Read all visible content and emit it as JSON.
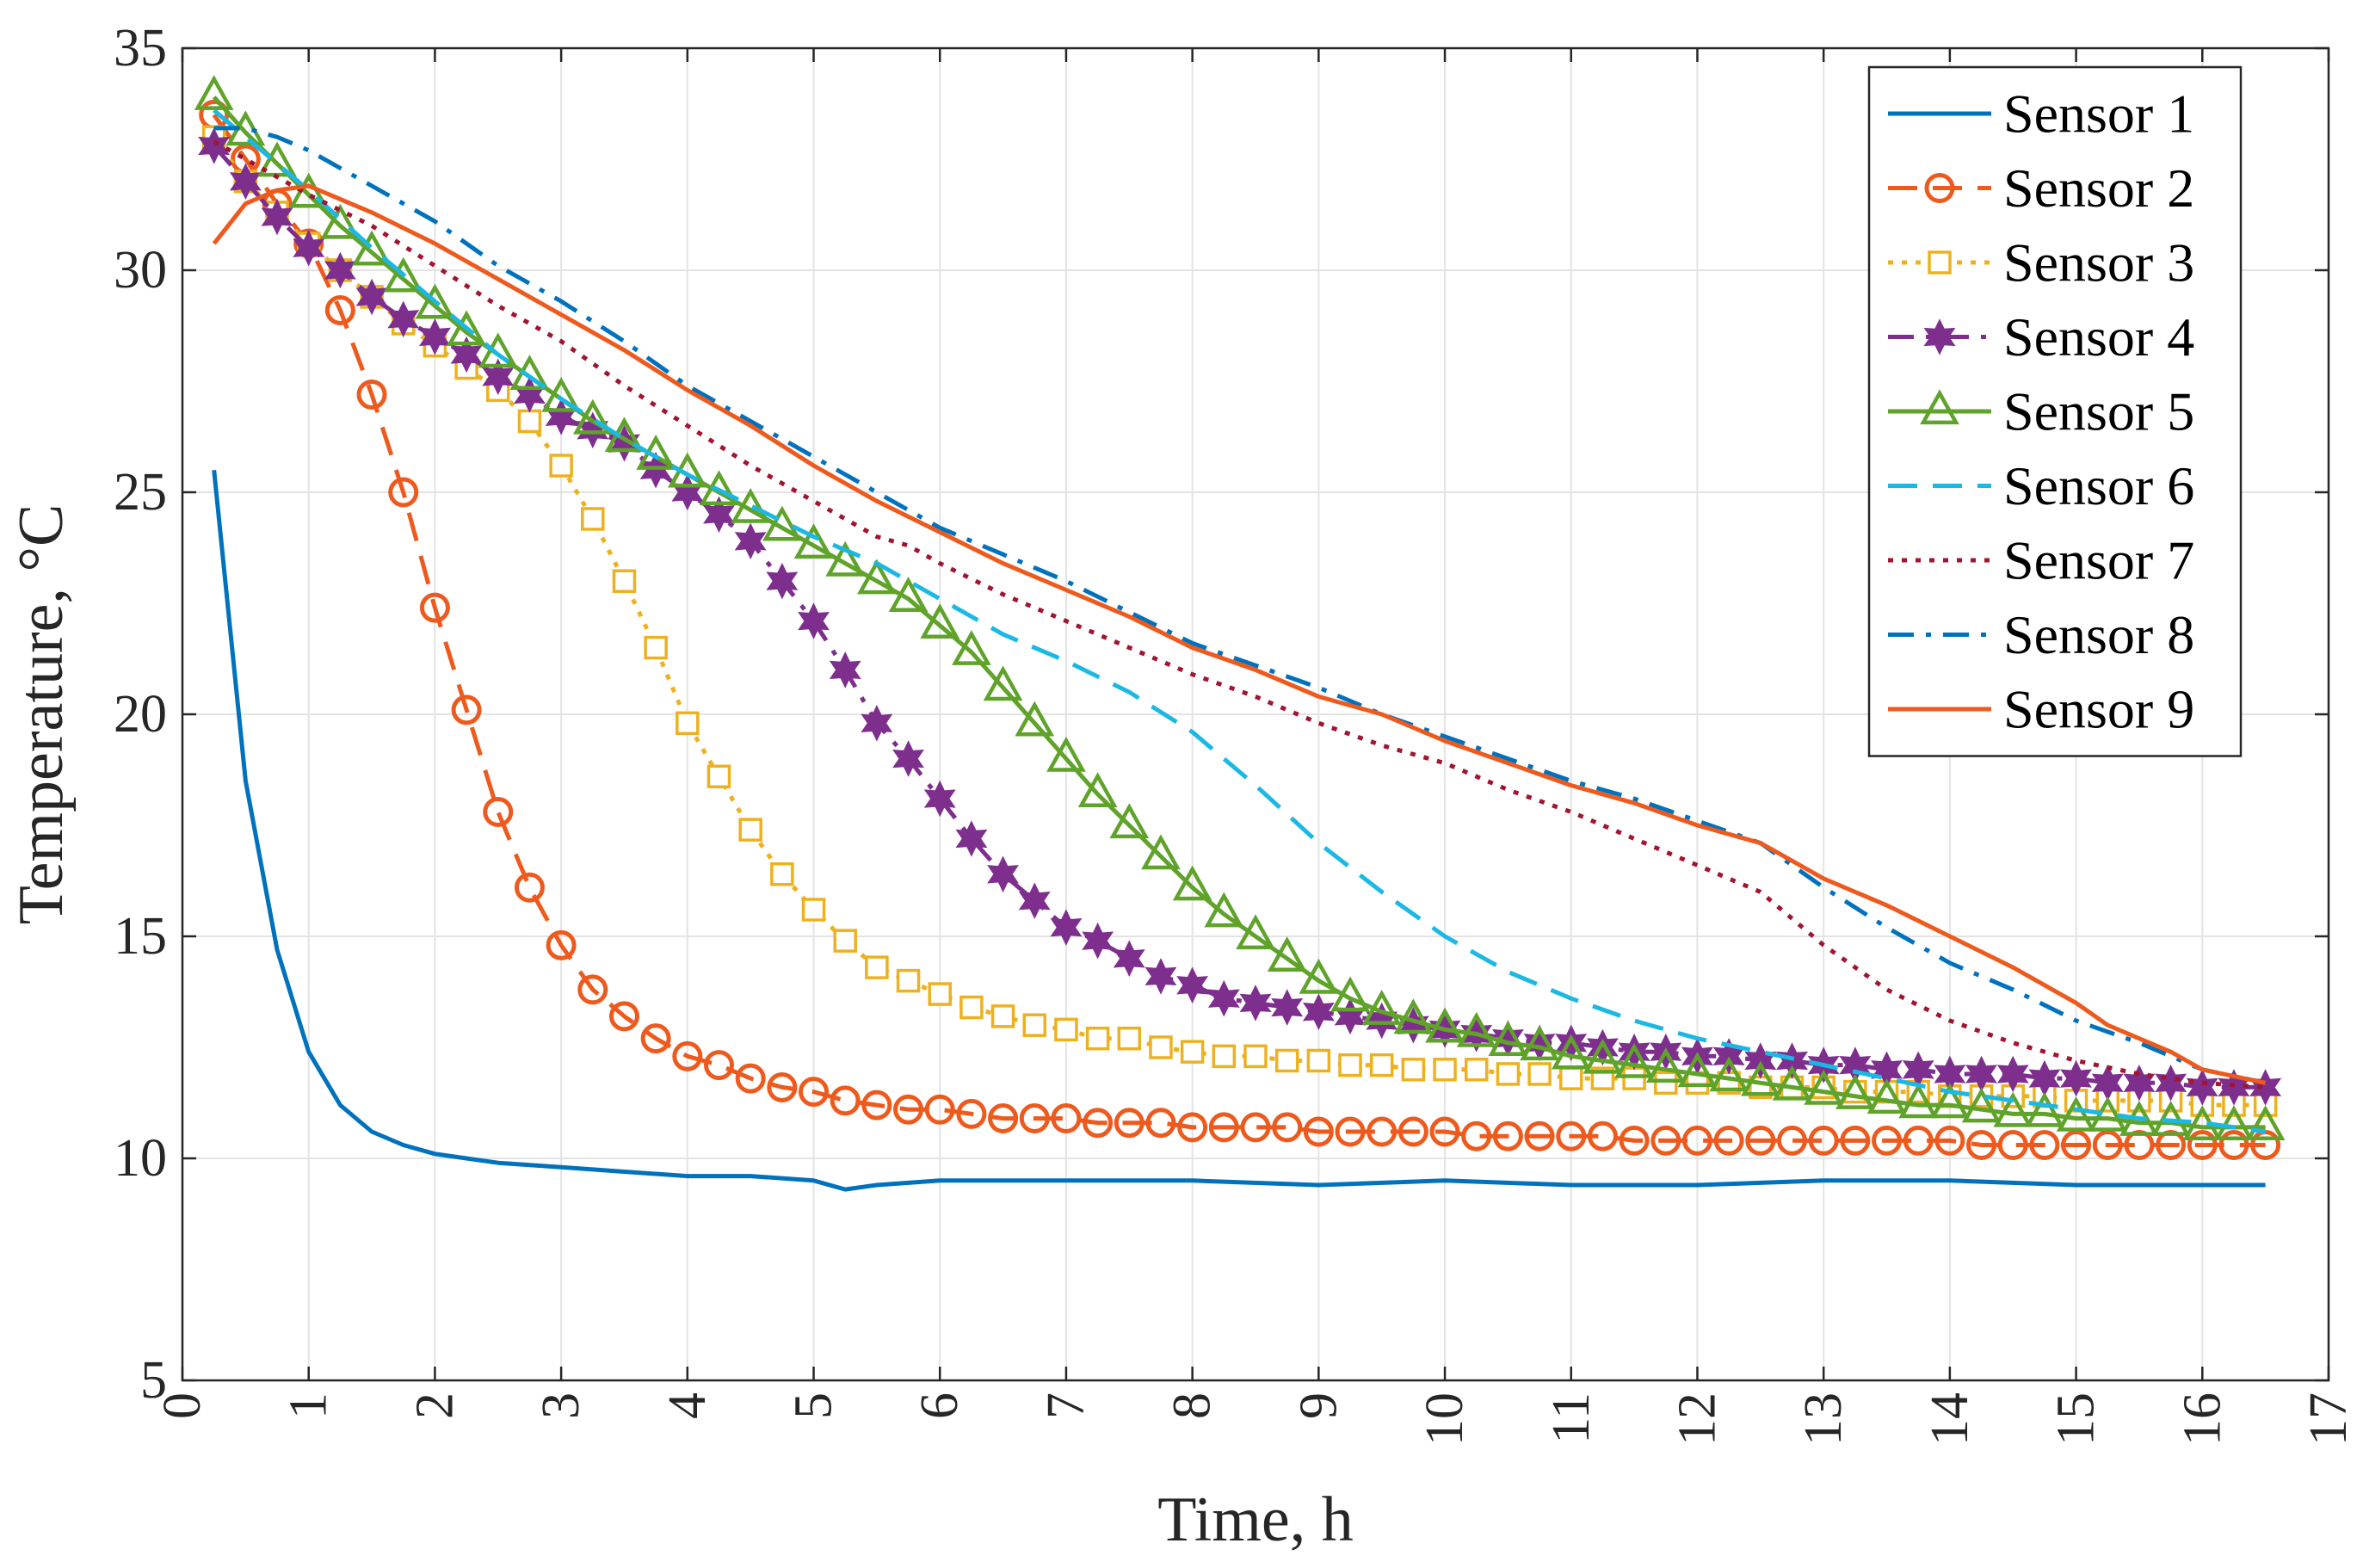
{
  "chart_data": {
    "type": "line",
    "xlabel": "Time, h",
    "ylabel": "Temperature, °C",
    "xlim": [
      0,
      17
    ],
    "ylim": [
      5,
      35
    ],
    "xticks": [
      0,
      1,
      2,
      3,
      4,
      5,
      6,
      7,
      8,
      9,
      10,
      11,
      12,
      13,
      14,
      15,
      16,
      17
    ],
    "yticks": [
      5,
      10,
      15,
      20,
      25,
      30,
      35
    ],
    "grid": true,
    "legend_location": "top-right",
    "series": [
      {
        "name": "Sensor 1",
        "color": "#0072BD",
        "dash": "solid",
        "marker": "none",
        "x": [
          0.25,
          0.5,
          0.75,
          1.0,
          1.25,
          1.5,
          1.75,
          2.0,
          2.5,
          3.0,
          3.5,
          4.0,
          4.5,
          5.0,
          5.25,
          5.5,
          6.0,
          7.0,
          8.0,
          9.0,
          10.0,
          11.0,
          12.0,
          13.0,
          14.0,
          15.0,
          16.5
        ],
        "y": [
          25.5,
          18.5,
          14.7,
          12.4,
          11.2,
          10.6,
          10.3,
          10.1,
          9.9,
          9.8,
          9.7,
          9.6,
          9.6,
          9.5,
          9.3,
          9.4,
          9.5,
          9.5,
          9.5,
          9.4,
          9.5,
          9.4,
          9.4,
          9.5,
          9.5,
          9.4,
          9.4
        ]
      },
      {
        "name": "Sensor 2",
        "color": "#EE5A1E",
        "dash": "dashed",
        "marker": "circle",
        "x": [
          0.25,
          0.5,
          0.75,
          1.0,
          1.25,
          1.5,
          1.75,
          2.0,
          2.25,
          2.5,
          2.75,
          3.0,
          3.25,
          3.5,
          3.75,
          4.0,
          4.25,
          4.5,
          4.75,
          5.0,
          5.25,
          5.5,
          5.75,
          6.0,
          6.25,
          6.5,
          6.75,
          7.0,
          7.25,
          7.5,
          7.75,
          8.0,
          8.25,
          8.5,
          8.75,
          9.0,
          9.25,
          9.5,
          9.75,
          10.0,
          10.25,
          10.5,
          10.75,
          11.0,
          11.25,
          11.5,
          11.75,
          12.0,
          12.25,
          12.5,
          12.75,
          13.0,
          13.25,
          13.5,
          13.75,
          14.0,
          14.25,
          14.5,
          14.75,
          15.0,
          15.25,
          15.5,
          15.75,
          16.0,
          16.25,
          16.5
        ],
        "y": [
          33.5,
          32.5,
          31.5,
          30.6,
          29.1,
          27.2,
          25.0,
          22.4,
          20.1,
          17.8,
          16.1,
          14.8,
          13.8,
          13.2,
          12.7,
          12.3,
          12.1,
          11.8,
          11.6,
          11.5,
          11.3,
          11.2,
          11.1,
          11.1,
          11.0,
          10.9,
          10.9,
          10.9,
          10.8,
          10.8,
          10.8,
          10.7,
          10.7,
          10.7,
          10.7,
          10.6,
          10.6,
          10.6,
          10.6,
          10.6,
          10.5,
          10.5,
          10.5,
          10.5,
          10.5,
          10.4,
          10.4,
          10.4,
          10.4,
          10.4,
          10.4,
          10.4,
          10.4,
          10.4,
          10.4,
          10.4,
          10.3,
          10.3,
          10.3,
          10.3,
          10.3,
          10.3,
          10.3,
          10.3,
          10.3,
          10.3
        ]
      },
      {
        "name": "Sensor 3",
        "color": "#EDB120",
        "dash": "dotted",
        "marker": "square",
        "x": [
          0.25,
          0.5,
          0.75,
          1.0,
          1.25,
          1.5,
          1.75,
          2.0,
          2.25,
          2.5,
          2.75,
          3.0,
          3.25,
          3.5,
          3.75,
          4.0,
          4.25,
          4.5,
          4.75,
          5.0,
          5.25,
          5.5,
          5.75,
          6.0,
          6.25,
          6.5,
          6.75,
          7.0,
          7.25,
          7.5,
          7.75,
          8.0,
          8.25,
          8.5,
          8.75,
          9.0,
          9.25,
          9.5,
          9.75,
          10.0,
          10.25,
          10.5,
          10.75,
          11.0,
          11.25,
          11.5,
          11.75,
          12.0,
          12.25,
          12.5,
          12.75,
          13.0,
          13.25,
          13.5,
          13.75,
          14.0,
          14.25,
          14.5,
          14.75,
          15.0,
          15.25,
          15.5,
          15.75,
          16.0,
          16.25,
          16.5
        ],
        "y": [
          33.0,
          32.0,
          31.3,
          30.6,
          30.0,
          29.4,
          28.8,
          28.3,
          27.8,
          27.3,
          26.6,
          25.6,
          24.4,
          23.0,
          21.5,
          19.8,
          18.6,
          17.4,
          16.4,
          15.6,
          14.9,
          14.3,
          14.0,
          13.7,
          13.4,
          13.2,
          13.0,
          12.9,
          12.7,
          12.7,
          12.5,
          12.4,
          12.3,
          12.3,
          12.2,
          12.2,
          12.1,
          12.1,
          12.0,
          12.0,
          12.0,
          11.9,
          11.9,
          11.8,
          11.8,
          11.8,
          11.7,
          11.7,
          11.7,
          11.6,
          11.6,
          11.6,
          11.5,
          11.5,
          11.5,
          11.4,
          11.4,
          11.4,
          11.4,
          11.3,
          11.3,
          11.3,
          11.3,
          11.2,
          11.2,
          11.2
        ]
      },
      {
        "name": "Sensor 4",
        "color": "#7E2F8E",
        "dash": "dashdot",
        "marker": "hexagram",
        "x": [
          0.25,
          0.5,
          0.75,
          1.0,
          1.25,
          1.5,
          1.75,
          2.0,
          2.25,
          2.5,
          2.75,
          3.0,
          3.25,
          3.5,
          3.75,
          4.0,
          4.25,
          4.5,
          4.75,
          5.0,
          5.25,
          5.5,
          5.75,
          6.0,
          6.25,
          6.5,
          6.75,
          7.0,
          7.25,
          7.5,
          7.75,
          8.0,
          8.25,
          8.5,
          8.75,
          9.0,
          9.25,
          9.5,
          9.75,
          10.0,
          10.25,
          10.5,
          10.75,
          11.0,
          11.25,
          11.5,
          11.75,
          12.0,
          12.25,
          12.5,
          12.75,
          13.0,
          13.25,
          13.5,
          13.75,
          14.0,
          14.25,
          14.5,
          14.75,
          15.0,
          15.25,
          15.5,
          15.75,
          16.0,
          16.25,
          16.5
        ],
        "y": [
          32.8,
          32.0,
          31.2,
          30.5,
          30.0,
          29.4,
          28.9,
          28.5,
          28.1,
          27.6,
          27.2,
          26.7,
          26.4,
          26.1,
          25.5,
          25.0,
          24.5,
          23.9,
          23.0,
          22.1,
          21.0,
          19.8,
          19.0,
          18.1,
          17.2,
          16.4,
          15.8,
          15.2,
          14.9,
          14.5,
          14.1,
          13.9,
          13.6,
          13.5,
          13.4,
          13.3,
          13.2,
          13.1,
          13.0,
          12.9,
          12.8,
          12.7,
          12.6,
          12.6,
          12.5,
          12.4,
          12.4,
          12.3,
          12.3,
          12.2,
          12.2,
          12.1,
          12.1,
          12.0,
          12.0,
          11.9,
          11.9,
          11.9,
          11.8,
          11.8,
          11.7,
          11.7,
          11.7,
          11.6,
          11.6,
          11.6
        ]
      },
      {
        "name": "Sensor 5",
        "color": "#5FA32A",
        "dash": "solid",
        "marker": "triangle",
        "x": [
          0.25,
          0.5,
          0.75,
          1.0,
          1.25,
          1.5,
          1.75,
          2.0,
          2.25,
          2.5,
          2.75,
          3.0,
          3.25,
          3.5,
          3.75,
          4.0,
          4.25,
          4.5,
          4.75,
          5.0,
          5.25,
          5.5,
          5.75,
          6.0,
          6.25,
          6.5,
          6.75,
          7.0,
          7.25,
          7.5,
          7.75,
          8.0,
          8.25,
          8.5,
          8.75,
          9.0,
          9.25,
          9.5,
          9.75,
          10.0,
          10.25,
          10.5,
          10.75,
          11.0,
          11.25,
          11.5,
          11.75,
          12.0,
          12.25,
          12.5,
          12.75,
          13.0,
          13.25,
          13.5,
          13.75,
          14.0,
          14.25,
          14.5,
          14.75,
          15.0,
          15.25,
          15.5,
          15.75,
          16.0,
          16.25,
          16.5
        ],
        "y": [
          33.9,
          33.1,
          32.4,
          31.7,
          31.0,
          30.4,
          29.8,
          29.2,
          28.6,
          28.1,
          27.6,
          27.1,
          26.6,
          26.2,
          25.8,
          25.4,
          25.0,
          24.6,
          24.2,
          23.8,
          23.4,
          23.0,
          22.6,
          22.0,
          21.4,
          20.6,
          19.8,
          19.0,
          18.2,
          17.5,
          16.8,
          16.1,
          15.5,
          15.0,
          14.5,
          14.0,
          13.6,
          13.3,
          13.1,
          12.9,
          12.8,
          12.6,
          12.5,
          12.3,
          12.2,
          12.1,
          12.0,
          11.9,
          11.8,
          11.7,
          11.6,
          11.5,
          11.4,
          11.3,
          11.2,
          11.2,
          11.1,
          11.0,
          11.0,
          10.9,
          10.9,
          10.8,
          10.8,
          10.7,
          10.7,
          10.7
        ]
      },
      {
        "name": "Sensor 6",
        "color": "#1CB8E4",
        "dash": "dashed",
        "marker": "none",
        "x": [
          0.25,
          0.5,
          1.0,
          1.5,
          2.0,
          2.5,
          3.0,
          3.5,
          4.0,
          4.5,
          5.0,
          5.5,
          6.0,
          6.5,
          7.0,
          7.5,
          8.0,
          8.5,
          9.0,
          9.5,
          10.0,
          10.5,
          11.0,
          11.5,
          12.0,
          12.5,
          13.0,
          13.5,
          14.0,
          14.5,
          15.0,
          15.5,
          16.0,
          16.5
        ],
        "y": [
          33.6,
          33.0,
          31.8,
          30.5,
          29.3,
          28.1,
          27.1,
          26.2,
          25.4,
          24.7,
          24.0,
          23.4,
          22.6,
          21.8,
          21.2,
          20.5,
          19.6,
          18.4,
          17.1,
          16.0,
          15.0,
          14.2,
          13.6,
          13.1,
          12.7,
          12.4,
          12.1,
          11.8,
          11.5,
          11.3,
          11.1,
          10.9,
          10.8,
          10.6
        ]
      },
      {
        "name": "Sensor 7",
        "color": "#A2142F",
        "dash": "dotted",
        "marker": "none",
        "x": [
          0.25,
          0.5,
          1.0,
          1.5,
          2.0,
          2.5,
          3.0,
          3.5,
          4.0,
          4.5,
          5.0,
          5.5,
          5.75,
          6.0,
          6.5,
          7.0,
          7.5,
          8.0,
          8.5,
          9.0,
          9.5,
          10.0,
          10.5,
          11.0,
          11.5,
          12.0,
          12.5,
          13.0,
          13.5,
          14.0,
          14.5,
          15.0,
          15.5,
          16.0,
          16.5
        ],
        "y": [
          32.9,
          32.5,
          31.7,
          31.0,
          30.1,
          29.2,
          28.4,
          27.4,
          26.5,
          25.6,
          24.8,
          24.0,
          23.8,
          23.4,
          22.7,
          22.1,
          21.5,
          20.9,
          20.4,
          19.8,
          19.3,
          18.9,
          18.3,
          17.8,
          17.2,
          16.6,
          16.0,
          14.8,
          13.8,
          13.1,
          12.6,
          12.2,
          11.9,
          11.7,
          11.6
        ]
      },
      {
        "name": "Sensor 8",
        "color": "#0072BD",
        "dash": "dashdot",
        "marker": "none",
        "x": [
          0.25,
          0.5,
          0.75,
          1.0,
          1.5,
          2.0,
          2.5,
          3.0,
          3.5,
          4.0,
          4.5,
          5.0,
          5.5,
          6.0,
          6.5,
          7.0,
          7.5,
          8.0,
          8.5,
          9.0,
          9.5,
          10.0,
          10.5,
          11.0,
          11.5,
          12.0,
          12.5,
          13.0,
          13.5,
          14.0,
          14.5,
          15.0,
          15.5,
          16.0,
          16.5
        ],
        "y": [
          33.2,
          33.2,
          33.0,
          32.7,
          31.9,
          31.1,
          30.1,
          29.3,
          28.4,
          27.4,
          26.6,
          25.8,
          25.0,
          24.2,
          23.6,
          23.0,
          22.3,
          21.6,
          21.1,
          20.6,
          20.0,
          19.5,
          19.0,
          18.5,
          18.1,
          17.6,
          17.1,
          16.1,
          15.2,
          14.4,
          13.8,
          13.1,
          12.6,
          12.0,
          11.7
        ]
      },
      {
        "name": "Sensor 9",
        "color": "#EE5A1E",
        "dash": "solid",
        "marker": "none",
        "x": [
          0.25,
          0.5,
          0.75,
          1.0,
          1.5,
          2.0,
          2.5,
          3.0,
          3.5,
          4.0,
          4.5,
          5.0,
          5.5,
          6.0,
          6.5,
          7.0,
          7.5,
          8.0,
          8.5,
          9.0,
          9.5,
          10.0,
          10.5,
          11.0,
          11.5,
          12.0,
          12.5,
          13.0,
          13.5,
          14.0,
          14.5,
          15.0,
          15.25,
          15.5,
          15.75,
          16.0,
          16.5
        ],
        "y": [
          30.6,
          31.5,
          31.8,
          31.9,
          31.3,
          30.6,
          29.8,
          29.0,
          28.2,
          27.3,
          26.5,
          25.6,
          24.8,
          24.1,
          23.4,
          22.8,
          22.2,
          21.5,
          21.0,
          20.4,
          20.0,
          19.4,
          18.9,
          18.4,
          18.0,
          17.5,
          17.1,
          16.3,
          15.7,
          15.0,
          14.3,
          13.5,
          13.0,
          12.7,
          12.4,
          12.0,
          11.7
        ]
      }
    ]
  }
}
